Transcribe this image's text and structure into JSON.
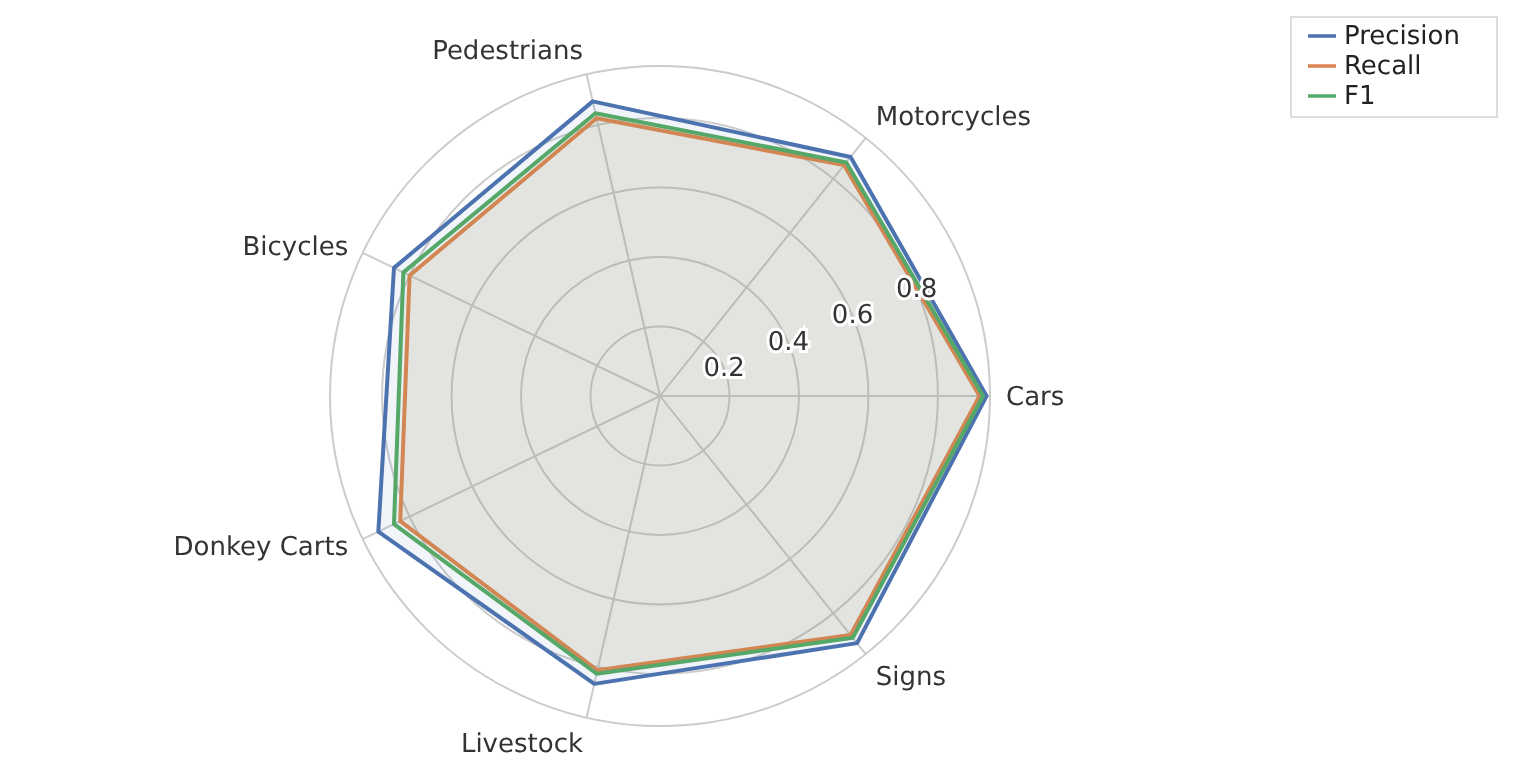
{
  "chart_data": {
    "type": "radar",
    "categories": [
      "Pedestrians",
      "Motorcycles",
      "Cars",
      "Signs",
      "Livestock",
      "Donkey Carts",
      "Bicycles"
    ],
    "series": [
      {
        "name": "Precision",
        "color": "#4c72b0",
        "values": [
          0.87,
          0.88,
          0.94,
          0.91,
          0.85,
          0.9,
          0.85
        ]
      },
      {
        "name": "Recall",
        "color": "#dd8452",
        "values": [
          0.82,
          0.85,
          0.92,
          0.88,
          0.81,
          0.83,
          0.8
        ]
      },
      {
        "name": "F1",
        "color": "#55a868",
        "values": [
          0.835,
          0.86,
          0.93,
          0.89,
          0.82,
          0.85,
          0.82
        ]
      }
    ],
    "ylim": [
      0,
      0.95
    ],
    "yticks": [
      0.2,
      0.4,
      0.6,
      0.8
    ],
    "grid": true,
    "legend": "top right"
  }
}
